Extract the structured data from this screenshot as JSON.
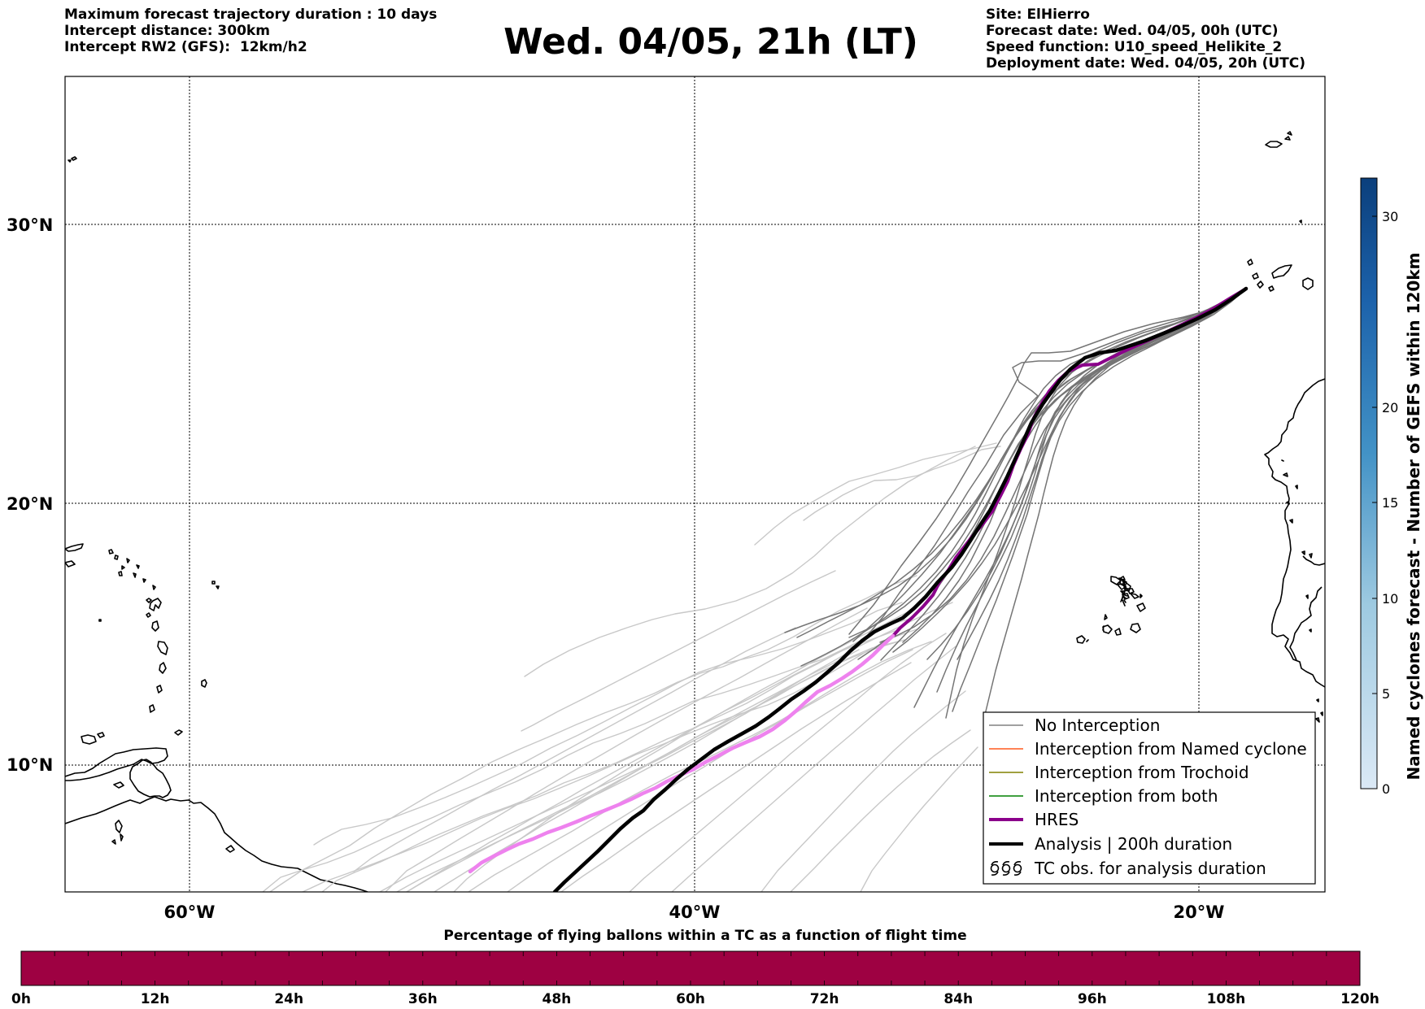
{
  "header_left": [
    "Maximum forecast trajectory duration : 10 days",
    "Intercept distance: 300km",
    "Intercept RW2 (GFS):  12km/h2"
  ],
  "title": "Wed. 04/05, 21h (LT)",
  "header_right": [
    "Site: ElHierro",
    "Forecast date: Wed. 04/05, 00h (UTC)",
    "Speed function: U10_speed_Helikite_2",
    "Deployment date: Wed. 04/05, 20h (UTC)"
  ],
  "map": {
    "lat_labels": [
      "30°N",
      "20°N",
      "10°N"
    ],
    "lon_labels": [
      "60°W",
      "40°W",
      "20°W"
    ],
    "grid": "dotted",
    "colors": {
      "no_interception": "#777777",
      "hres": "#8b008b",
      "hres_late": "#ee82ee",
      "analysis": "#000000"
    }
  },
  "legend": {
    "placement": "lower-right",
    "items": [
      {
        "label": "No Interception",
        "color": "#808080"
      },
      {
        "label": "Interception from Named cyclone",
        "color": "#ff5a1f"
      },
      {
        "label": "Interception from Trochoid",
        "color": "#808000"
      },
      {
        "label": "Interception from both",
        "color": "#008000"
      },
      {
        "label": "HRES",
        "color": "#8b008b"
      },
      {
        "label": "Analysis | 200h duration",
        "color": "#000000"
      },
      {
        "label": "TC obs. for analysis duration",
        "icon": "hurricane-symbols",
        "glyphs": "ठठठ"
      }
    ]
  },
  "colorbar_right": {
    "title": "Named cyclones forecast - Number of GEFS within 120km",
    "ticks": [
      "0",
      "5",
      "10",
      "15",
      "20",
      "30"
    ],
    "colormap": "blues"
  },
  "colorbar_bottom": {
    "title": "Percentage of flying ballons within a TC as a function of flight time",
    "ticks": [
      "0h",
      "12h",
      "24h",
      "36h",
      "48h",
      "60h",
      "72h",
      "84h",
      "96h",
      "108h",
      "120h"
    ],
    "fill_color": "#9e0142"
  }
}
